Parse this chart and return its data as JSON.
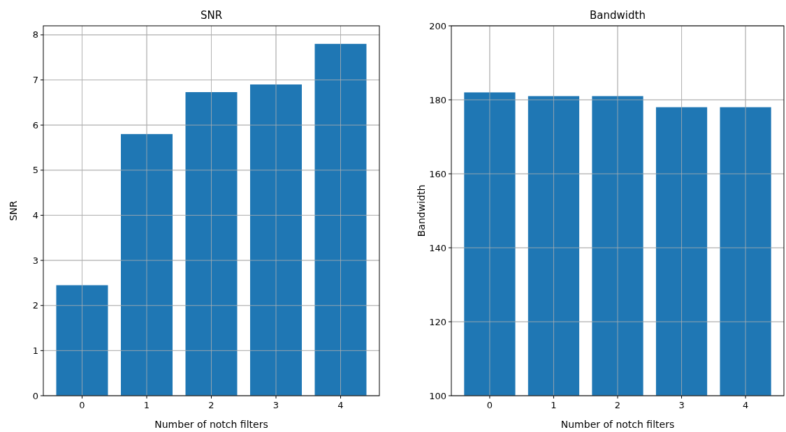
{
  "chart_data": [
    {
      "type": "bar",
      "title": "SNR",
      "xlabel": "Number of notch filters",
      "ylabel": "SNR",
      "categories": [
        "0",
        "1",
        "2",
        "3",
        "4"
      ],
      "values": [
        2.45,
        5.8,
        6.73,
        6.9,
        7.8
      ],
      "color": "#1f77b4",
      "ylim": [
        0,
        8.2
      ],
      "yticks": [
        0,
        1,
        2,
        3,
        4,
        5,
        6,
        7,
        8
      ],
      "grid": true
    },
    {
      "type": "bar",
      "title": "Bandwidth",
      "xlabel": "Number of notch filters",
      "ylabel": "Bandwidth",
      "categories": [
        "0",
        "1",
        "2",
        "3",
        "4"
      ],
      "values": [
        182,
        181,
        181,
        178,
        178
      ],
      "color": "#1f77b4",
      "ylim": [
        100,
        200
      ],
      "yticks": [
        100,
        120,
        140,
        160,
        180,
        200
      ],
      "grid": true
    }
  ]
}
